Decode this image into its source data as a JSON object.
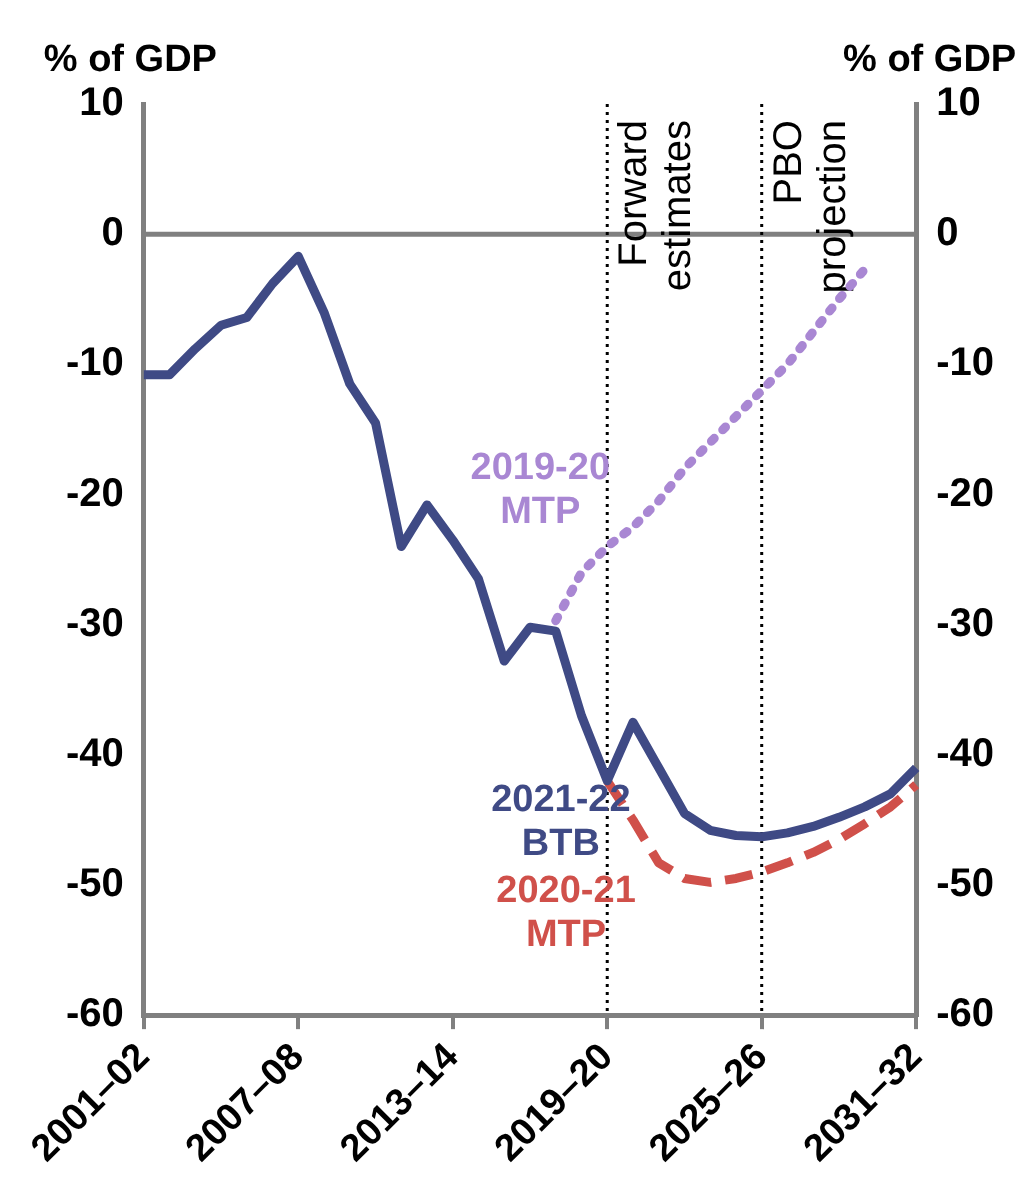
{
  "chart_data": {
    "type": "line",
    "ylabel": "% of GDP",
    "y2label": "% of GDP",
    "categories": [
      "2001–02",
      null,
      null,
      null,
      null,
      null,
      "2007–08",
      null,
      null,
      null,
      null,
      null,
      "2013–14",
      null,
      null,
      null,
      null,
      null,
      "2019–20",
      null,
      null,
      null,
      null,
      null,
      "2025–26",
      null,
      null,
      null,
      null,
      null,
      "2031–32"
    ],
    "ylim": [
      -60,
      10
    ],
    "yticks": [
      -60,
      -50,
      -40,
      -30,
      -20,
      -10,
      0,
      10
    ],
    "y2lim": [
      -60,
      10
    ],
    "y2ticks": [
      -60,
      -50,
      -40,
      -30,
      -20,
      -10,
      0,
      10
    ],
    "grid": false,
    "legend": false,
    "marker": "none",
    "series": [
      {
        "name": "2021-22 BTB",
        "color": "#3f4a85",
        "line_style": "solid",
        "values": [
          -10.8,
          -10.8,
          -8.8,
          -7,
          -6.4,
          -3.8,
          -1.7,
          -6,
          -11.5,
          -14.5,
          -24,
          -20.8,
          -23.5,
          -26.5,
          -32.8,
          -30.2,
          -30.5,
          -37,
          -42,
          -37.5,
          -41,
          -44.5,
          -45.8,
          -46.2,
          -46.3,
          -46,
          -45.5,
          -44.8,
          -44,
          -43,
          -41
        ]
      },
      {
        "name": "2020-21 MTP",
        "color": "#d0504a",
        "line_style": "dashed",
        "values": [
          null,
          null,
          null,
          null,
          null,
          null,
          null,
          null,
          null,
          null,
          null,
          null,
          null,
          null,
          null,
          null,
          null,
          null,
          -42,
          -45,
          -48.3,
          -49.5,
          -49.8,
          -49.5,
          -49,
          -48.3,
          -47.5,
          -46.5,
          -45.3,
          -44,
          -42.3
        ]
      },
      {
        "name": "2019-20 MTP",
        "color": "#a987d3",
        "line_style": "dotted",
        "values": [
          null,
          null,
          null,
          null,
          null,
          null,
          null,
          null,
          null,
          null,
          null,
          null,
          null,
          null,
          null,
          null,
          -29.7,
          -26,
          -24,
          -22.5,
          -20.5,
          -18,
          -16,
          -14,
          -12,
          -10,
          -7.5,
          -5,
          -2.7,
          null,
          null
        ]
      }
    ],
    "ref_lines": [
      {
        "axis": "y",
        "value": 0,
        "color": "#808080",
        "line_style": "solid"
      },
      {
        "axis": "x",
        "value": "2019–20",
        "label": "Forward estimates",
        "color": "#000000",
        "line_style": "dotted"
      },
      {
        "axis": "x",
        "value": "2025–26",
        "label": "PBO projection",
        "color": "#000000",
        "line_style": "dotted"
      }
    ]
  }
}
